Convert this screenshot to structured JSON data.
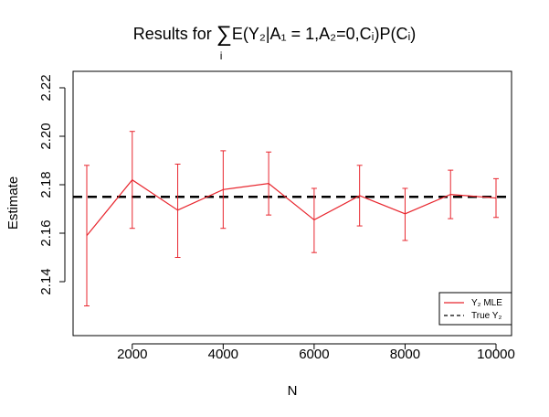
{
  "chart_data": {
    "type": "line",
    "title": {
      "prefix": "Results for ",
      "sigma": "∑",
      "sigma_sub": "i",
      "body": "E(Y₂|A₁ = 1,A₂=0,Cᵢ)P(Cᵢ)"
    },
    "xlabel": "N",
    "ylabel": "Estimate",
    "xlim": [
      1000,
      10000
    ],
    "ylim": [
      2.12,
      2.23
    ],
    "x_ticks": [
      2000,
      4000,
      6000,
      8000,
      10000
    ],
    "y_ticks": [
      2.14,
      2.16,
      2.18,
      2.2,
      2.22
    ],
    "y_tick_labels": [
      "2.14",
      "2.16",
      "2.18",
      "2.20",
      "2.22"
    ],
    "series": [
      {
        "name": "Y₂ MLE",
        "color": "#e8262e",
        "x": [
          1000,
          2000,
          3000,
          4000,
          5000,
          6000,
          7000,
          8000,
          9000,
          10000
        ],
        "values": [
          2.159,
          2.182,
          2.1695,
          2.178,
          2.1805,
          2.1655,
          2.1755,
          2.168,
          2.176,
          2.1745
        ],
        "lower": [
          2.13,
          2.162,
          2.15,
          2.162,
          2.1675,
          2.152,
          2.163,
          2.157,
          2.166,
          2.1665
        ],
        "upper": [
          2.188,
          2.202,
          2.1885,
          2.194,
          2.1935,
          2.1785,
          2.188,
          2.1785,
          2.186,
          2.1825
        ]
      },
      {
        "name": "True Y₂",
        "color": "#000000",
        "line_style": "dashed",
        "value": 2.175
      }
    ],
    "legend": {
      "placement": "bottom-right"
    },
    "grid": false
  }
}
